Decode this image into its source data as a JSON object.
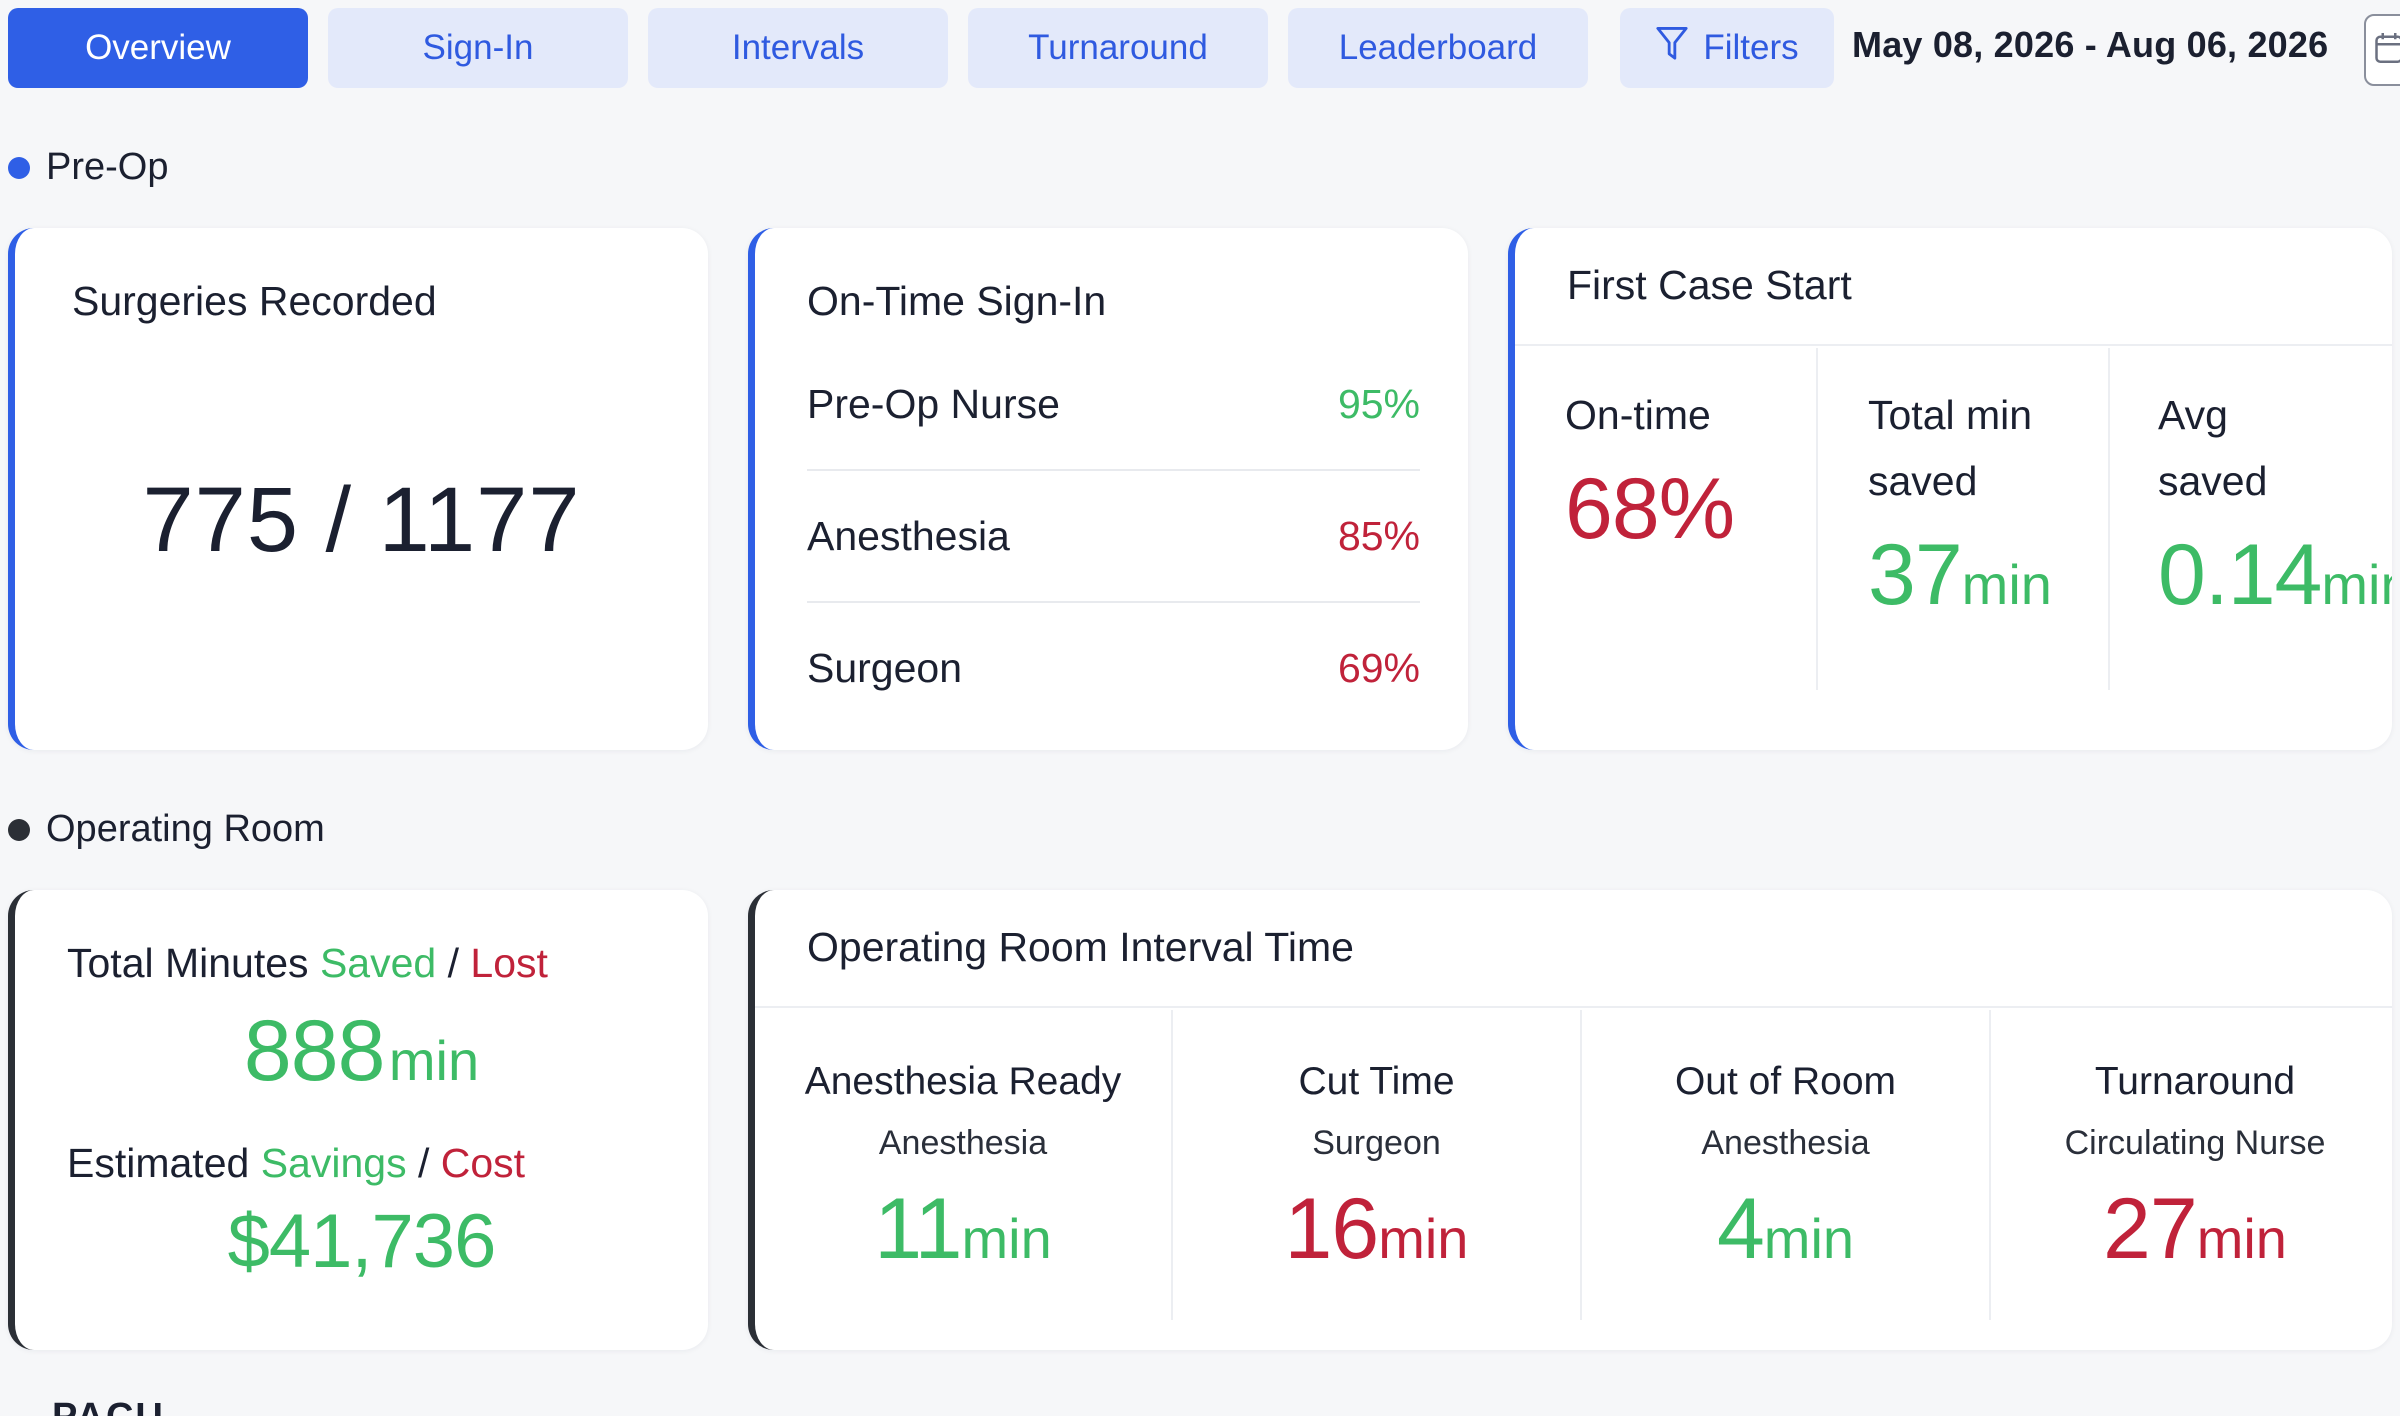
{
  "tabs": [
    {
      "label": "Overview",
      "active": true
    },
    {
      "label": "Sign-In",
      "active": false
    },
    {
      "label": "Intervals",
      "active": false
    },
    {
      "label": "Turnaround",
      "active": false
    },
    {
      "label": "Leaderboard",
      "active": false
    }
  ],
  "filters": {
    "label": "Filters",
    "icon": "funnel-icon"
  },
  "date_range": "May 08, 2026 - Aug 06, 2026",
  "calendar_icon": "calendar-icon",
  "colors": {
    "accent": "#2f5fe6",
    "good": "#3dbb66",
    "bad": "#c0223a",
    "dark_section": "#2b2f36"
  },
  "preop": {
    "title": "Pre-Op",
    "surgeries_recorded": {
      "title": "Surgeries Recorded",
      "value": "775 / 1177"
    },
    "on_time_sign_in": {
      "title": "On-Time Sign-In",
      "rows": [
        {
          "label": "Pre-Op Nurse",
          "value": "95%",
          "status": "good"
        },
        {
          "label": "Anesthesia",
          "value": "85%",
          "status": "bad"
        },
        {
          "label": "Surgeon",
          "value": "69%",
          "status": "bad"
        }
      ]
    },
    "first_case_start": {
      "title": "First Case Start",
      "on_time": {
        "label": "On-time",
        "value": "68%"
      },
      "total_saved": {
        "label_line1": "Total min",
        "label_line2": "saved",
        "value": "37",
        "unit": "min"
      },
      "avg_saved": {
        "label_line1": "Avg",
        "label_line2": "saved",
        "value": "0.14",
        "unit": "min"
      }
    }
  },
  "operating_room": {
    "title": "Operating Room",
    "minutes": {
      "line1": {
        "prefix": "Total Minutes ",
        "good": "Saved",
        "sep": " / ",
        "bad": "Lost"
      },
      "minutes_value": "888",
      "minutes_unit": "min",
      "line2": {
        "prefix": "Estimated ",
        "good": "Savings",
        "sep": " / ",
        "bad": "Cost"
      },
      "savings_value": "$41,736"
    },
    "interval_time": {
      "title": "Operating Room Interval Time",
      "columns": [
        {
          "label": "Anesthesia Ready",
          "role": "Anesthesia",
          "value": "11",
          "unit": "min",
          "status": "good"
        },
        {
          "label": "Cut Time",
          "role": "Surgeon",
          "value": "16",
          "unit": "min",
          "status": "bad"
        },
        {
          "label": "Out of Room",
          "role": "Anesthesia",
          "value": "4",
          "unit": "min",
          "status": "good"
        },
        {
          "label": "Turnaround",
          "role": "Circulating Nurse",
          "value": "27",
          "unit": "min",
          "status": "bad"
        }
      ]
    }
  },
  "next_section": {
    "title": "PACU"
  }
}
